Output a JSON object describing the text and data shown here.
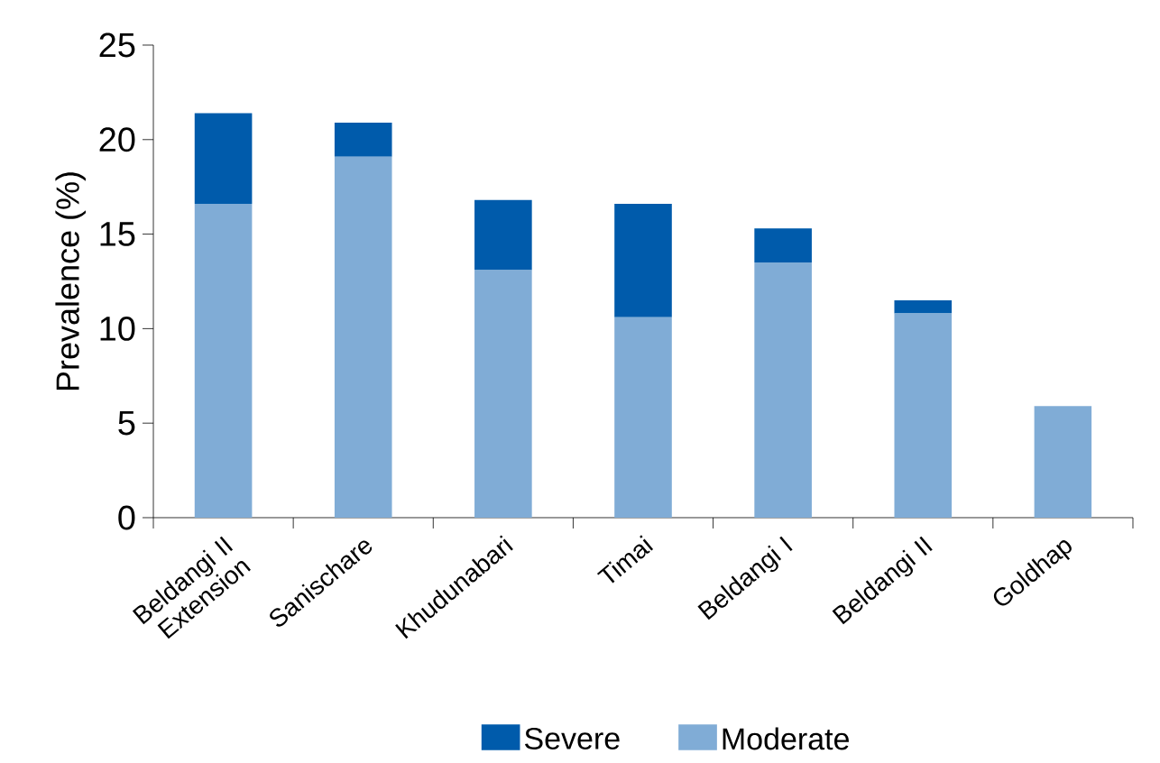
{
  "chart_data": {
    "type": "bar",
    "stacked": true,
    "ylabel": "Prevalence (%)",
    "categories": [
      "Beldangi II Extension",
      "Sanischare",
      "Khudunabari",
      "Timai",
      "Beldangi I",
      "Beldangi II",
      "Goldhap"
    ],
    "series": [
      {
        "name": "Moderate",
        "color": "#80acd6",
        "values": [
          16.6,
          19.1,
          13.1,
          10.6,
          13.5,
          10.8,
          5.9
        ]
      },
      {
        "name": "Severe",
        "color": "#005bab",
        "values": [
          4.8,
          1.8,
          3.7,
          6.0,
          1.8,
          0.7,
          0
        ]
      }
    ],
    "ylim": [
      0,
      25
    ],
    "yticks": [
      0,
      5,
      10,
      15,
      20,
      25
    ],
    "legend": "bottom",
    "grid": false
  }
}
